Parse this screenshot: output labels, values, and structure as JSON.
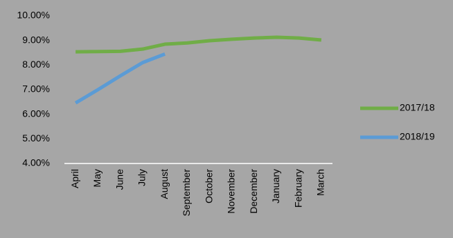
{
  "chart_data": {
    "type": "line",
    "categories": [
      "April",
      "May",
      "June",
      "July",
      "August",
      "September",
      "October",
      "November",
      "December",
      "January",
      "February",
      "March"
    ],
    "series": [
      {
        "name": "2017/18",
        "color": "#70ad47",
        "values": [
          8.54,
          8.55,
          8.56,
          8.65,
          8.85,
          8.9,
          8.99,
          9.05,
          9.1,
          9.13,
          9.1,
          9.02
        ]
      },
      {
        "name": "2018/19",
        "color": "#5b9bd5",
        "values": [
          6.46,
          7.0,
          7.56,
          8.1,
          8.45,
          null,
          null,
          null,
          null,
          null,
          null,
          null
        ]
      }
    ],
    "ylim": [
      4,
      10
    ],
    "yticks": [
      {
        "value": 4,
        "label": "4.00%"
      },
      {
        "value": 5,
        "label": "5.00%"
      },
      {
        "value": 6,
        "label": "6.00%"
      },
      {
        "value": 7,
        "label": "7.00%"
      },
      {
        "value": 8,
        "label": "8.00%"
      },
      {
        "value": 9,
        "label": "9.00%"
      },
      {
        "value": 10,
        "label": "10.00%"
      }
    ],
    "grid": false,
    "legend": "right"
  }
}
